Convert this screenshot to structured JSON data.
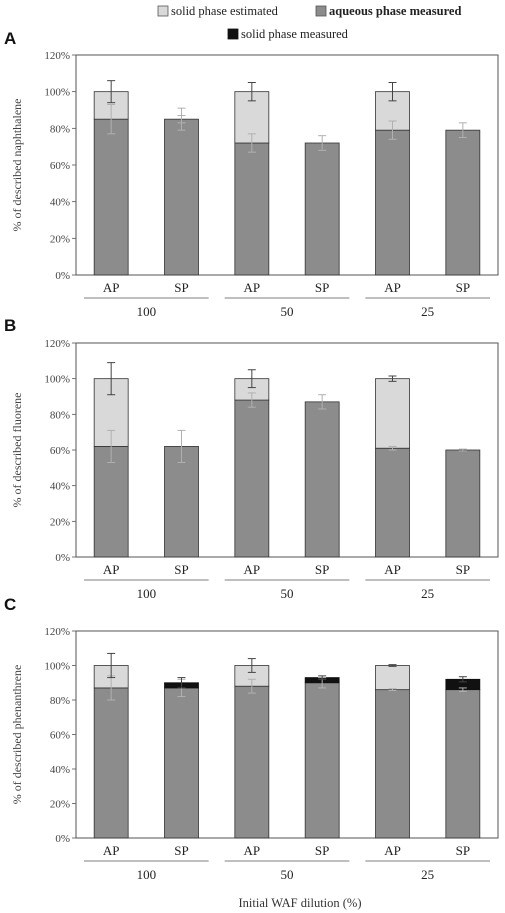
{
  "legend": {
    "items": [
      {
        "key": "estimated",
        "label": "solid phase estimated",
        "color": "#d9d9d9"
      },
      {
        "key": "aqueous",
        "label": "aqueous phase measured",
        "color": "#8c8c8c"
      },
      {
        "key": "solid",
        "label": "solid phase measured",
        "color": "#111111"
      }
    ]
  },
  "x_title": "Initial WAF dilution (%)",
  "chart_data": [
    {
      "panel": "A",
      "type": "bar",
      "stacked": true,
      "ylabel": "% of described naphthalene",
      "ylim": [
        0,
        120
      ],
      "yticks": [
        "0%",
        "20%",
        "40%",
        "60%",
        "80%",
        "100%",
        "120%"
      ],
      "categories": [
        "AP",
        "SP",
        "AP",
        "SP",
        "AP",
        "SP"
      ],
      "groups": [
        "100",
        "50",
        "25"
      ],
      "series": [
        {
          "name": "aqueous phase measured",
          "values": [
            85,
            85,
            72,
            72,
            79,
            79
          ]
        },
        {
          "name": "solid phase measured",
          "values": [
            0,
            0,
            0,
            0,
            0,
            0
          ]
        },
        {
          "name": "solid phase estimated",
          "values": [
            15,
            0,
            28,
            0,
            21,
            0
          ]
        }
      ],
      "errors": [
        {
          "center": 85,
          "err": 8
        },
        {
          "center": 85,
          "err": 2
        },
        {
          "center": 72,
          "err": 5
        },
        {
          "center": 72,
          "err": 4
        },
        {
          "center": 79,
          "err": 5
        },
        {
          "center": 79,
          "err": 4
        }
      ],
      "total_errors": [
        {
          "center": 100,
          "err": 6
        },
        null,
        {
          "center": 100,
          "err": 5
        },
        null,
        {
          "center": 100,
          "err": 5
        },
        null
      ],
      "extra_errors": [
        null,
        {
          "center": 85,
          "err": 6
        },
        null,
        null,
        null,
        null
      ]
    },
    {
      "panel": "B",
      "type": "bar",
      "stacked": true,
      "ylabel": "% of described fluorene",
      "ylim": [
        0,
        120
      ],
      "yticks": [
        "0%",
        "20%",
        "40%",
        "60%",
        "80%",
        "100%",
        "120%"
      ],
      "categories": [
        "AP",
        "SP",
        "AP",
        "SP",
        "AP",
        "SP"
      ],
      "groups": [
        "100",
        "50",
        "25"
      ],
      "series": [
        {
          "name": "aqueous phase measured",
          "values": [
            62,
            62,
            88,
            87,
            61,
            60
          ]
        },
        {
          "name": "solid phase measured",
          "values": [
            0,
            0,
            0,
            0,
            0,
            0
          ]
        },
        {
          "name": "solid phase estimated",
          "values": [
            38,
            0,
            12,
            0,
            39,
            0
          ]
        }
      ],
      "errors": [
        {
          "center": 62,
          "err": 9
        },
        {
          "center": 62,
          "err": 9
        },
        {
          "center": 88,
          "err": 4
        },
        {
          "center": 87,
          "err": 4
        },
        {
          "center": 61,
          "err": 1
        },
        {
          "center": 60,
          "err": 0.5
        }
      ],
      "total_errors": [
        {
          "center": 100,
          "err": 9
        },
        null,
        {
          "center": 100,
          "err": 5
        },
        null,
        {
          "center": 100,
          "err": 1.5
        },
        null
      ],
      "extra_errors": [
        null,
        null,
        null,
        null,
        null,
        null
      ]
    },
    {
      "panel": "C",
      "type": "bar",
      "stacked": true,
      "ylabel": "% of described phenanthrene",
      "ylim": [
        0,
        120
      ],
      "yticks": [
        "0%",
        "20%",
        "40%",
        "60%",
        "80%",
        "100%",
        "120%"
      ],
      "categories": [
        "AP",
        "SP",
        "AP",
        "SP",
        "AP",
        "SP"
      ],
      "groups": [
        "100",
        "50",
        "25"
      ],
      "series": [
        {
          "name": "aqueous phase measured",
          "values": [
            87,
            87,
            88,
            90,
            86,
            86
          ]
        },
        {
          "name": "solid phase measured",
          "values": [
            0,
            3,
            0,
            3,
            0,
            6
          ]
        },
        {
          "name": "solid phase estimated",
          "values": [
            13,
            0,
            12,
            0,
            14,
            0
          ]
        }
      ],
      "errors": [
        {
          "center": 87,
          "err": 7
        },
        {
          "center": 87,
          "err": 5
        },
        {
          "center": 88,
          "err": 4
        },
        {
          "center": 90,
          "err": 3
        },
        {
          "center": 86,
          "err": 0.5
        },
        {
          "center": 86,
          "err": 1
        }
      ],
      "total_errors": [
        {
          "center": 100,
          "err": 7
        },
        {
          "center": 90,
          "err": 3
        },
        {
          "center": 100,
          "err": 4
        },
        {
          "center": 93,
          "err": 1
        },
        {
          "center": 100,
          "err": 0.5
        },
        {
          "center": 92,
          "err": 1.5
        }
      ],
      "extra_errors": [
        null,
        null,
        null,
        null,
        null,
        null
      ]
    }
  ]
}
